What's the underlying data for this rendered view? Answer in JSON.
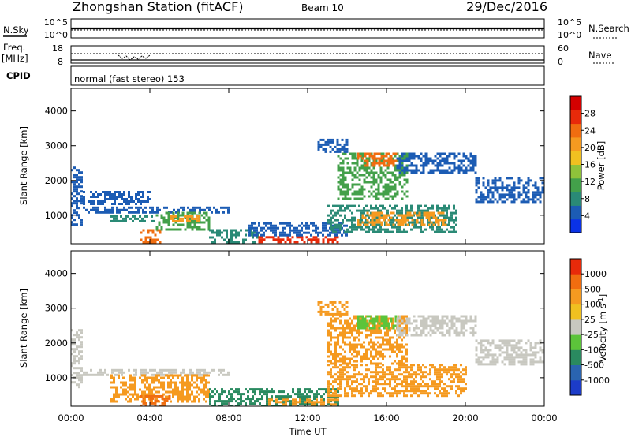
{
  "header": {
    "station": "Zhongshan Station (fitACF)",
    "beam": "Beam 10",
    "date": "29/Dec/2016"
  },
  "status_panel": {
    "nsky_label": "N.Sky",
    "nsky_ticks": [
      "10^5",
      "10^0"
    ],
    "nsearch_label": "N.Search",
    "nsearch_ticks": [
      "10^5",
      "10^0"
    ],
    "freq_label": "Freq.",
    "freq_unit": "[MHz]",
    "freq_ticks": [
      "18",
      "8"
    ],
    "nave_label": "Nave",
    "nave_ticks": [
      "60",
      "0"
    ],
    "cpid_label": "CPID",
    "cpid_text": "normal (fast stereo) 153"
  },
  "chart_data": [
    {
      "type": "heatmap",
      "name": "power",
      "ylabel": "Slant Range [km]",
      "ylim": [
        180,
        4650
      ],
      "yticks": [
        1000,
        2000,
        3000,
        4000
      ],
      "xlim": [
        0,
        24
      ],
      "colorbar": {
        "label": "Power [dB]",
        "ticks": [
          "4",
          "8",
          "12",
          "16",
          "20",
          "24",
          "28"
        ],
        "colors": [
          "#0a32e6",
          "#1c5cb4",
          "#2a8a76",
          "#43a04a",
          "#8fc23a",
          "#f0c020",
          "#f59a20",
          "#f06d10",
          "#e82a0a",
          "#d40000"
        ]
      },
      "regions": [
        {
          "t0": 0.0,
          "t1": 0.6,
          "r0": 700,
          "r1": 2400,
          "c": "#1c5cb4"
        },
        {
          "t0": 0.6,
          "t1": 8.0,
          "r0": 1100,
          "r1": 1250,
          "c": "#1c5cb4"
        },
        {
          "t0": 0.6,
          "t1": 4.0,
          "r0": 1300,
          "r1": 1700,
          "c": "#1c5cb4"
        },
        {
          "t0": 2.0,
          "t1": 4.2,
          "r0": 800,
          "r1": 1000,
          "c": "#2a8a76"
        },
        {
          "t0": 3.5,
          "t1": 4.5,
          "r0": 250,
          "r1": 600,
          "c": "#f06d10"
        },
        {
          "t0": 4.3,
          "t1": 7.0,
          "r0": 600,
          "r1": 1100,
          "c": "#43a04a"
        },
        {
          "t0": 5.0,
          "t1": 6.5,
          "r0": 800,
          "r1": 1000,
          "c": "#f59a20"
        },
        {
          "t0": 7.0,
          "t1": 9.5,
          "r0": 200,
          "r1": 600,
          "c": "#2a8a76"
        },
        {
          "t0": 9.5,
          "t1": 13.5,
          "r0": 200,
          "r1": 400,
          "c": "#e82a0a"
        },
        {
          "t0": 9.0,
          "t1": 14.0,
          "r0": 400,
          "r1": 800,
          "c": "#1c5cb4"
        },
        {
          "t0": 13.0,
          "t1": 19.5,
          "r0": 500,
          "r1": 1300,
          "c": "#2a8a76"
        },
        {
          "t0": 14.5,
          "t1": 19.0,
          "r0": 700,
          "r1": 1100,
          "c": "#f59a20"
        },
        {
          "t0": 13.5,
          "t1": 17.0,
          "r0": 1500,
          "r1": 2800,
          "c": "#43a04a"
        },
        {
          "t0": 14.5,
          "t1": 16.5,
          "r0": 2400,
          "r1": 2800,
          "c": "#f06d10"
        },
        {
          "t0": 16.5,
          "t1": 20.5,
          "r0": 2200,
          "r1": 2800,
          "c": "#1c5cb4"
        },
        {
          "t0": 20.5,
          "t1": 24.0,
          "r0": 1400,
          "r1": 2100,
          "c": "#1c5cb4"
        },
        {
          "t0": 12.5,
          "t1": 14.0,
          "r0": 2800,
          "r1": 3200,
          "c": "#1c5cb4"
        }
      ]
    },
    {
      "type": "heatmap",
      "name": "velocity",
      "ylabel": "Slant Range [km]",
      "xlabel": "Time UT",
      "ylim": [
        180,
        4650
      ],
      "yticks": [
        1000,
        2000,
        3000,
        4000
      ],
      "xlim": [
        0,
        24
      ],
      "xticks": [
        "00:00",
        "04:00",
        "08:00",
        "12:00",
        "16:00",
        "20:00",
        "00:00"
      ],
      "colorbar": {
        "label": "Velocity [m s",
        "label_sup": "-1",
        "label_end": "]",
        "ticks": [
          "1000",
          "500",
          "100",
          "25",
          "-25",
          "-100",
          "-500",
          "-1000"
        ],
        "colors": [
          "#1c3cc8",
          "#2a64b0",
          "#2a8a60",
          "#5cc43a",
          "#c8c8c0",
          "#f0c020",
          "#f59a20",
          "#f06d10",
          "#e82a0a"
        ]
      },
      "regions": [
        {
          "t0": 0.0,
          "t1": 0.6,
          "r0": 700,
          "r1": 2400,
          "c": "#c8c8c0"
        },
        {
          "t0": 0.6,
          "t1": 8.0,
          "r0": 1100,
          "r1": 1250,
          "c": "#c8c8c0"
        },
        {
          "t0": 2.0,
          "t1": 7.0,
          "r0": 300,
          "r1": 1100,
          "c": "#f59a20"
        },
        {
          "t0": 3.5,
          "t1": 5.0,
          "r0": 200,
          "r1": 500,
          "c": "#f06d10"
        },
        {
          "t0": 7.0,
          "t1": 13.5,
          "r0": 200,
          "r1": 700,
          "c": "#2a8a60"
        },
        {
          "t0": 10.0,
          "t1": 13.5,
          "r0": 200,
          "r1": 400,
          "c": "#f59a20"
        },
        {
          "t0": 13.0,
          "t1": 20.0,
          "r0": 500,
          "r1": 1400,
          "c": "#f59a20"
        },
        {
          "t0": 13.0,
          "t1": 17.0,
          "r0": 1400,
          "r1": 2800,
          "c": "#f59a20"
        },
        {
          "t0": 14.5,
          "t1": 16.5,
          "r0": 2400,
          "r1": 2800,
          "c": "#5cc43a"
        },
        {
          "t0": 16.5,
          "t1": 20.5,
          "r0": 2200,
          "r1": 2800,
          "c": "#c8c8c0"
        },
        {
          "t0": 20.5,
          "t1": 24.0,
          "r0": 1400,
          "r1": 2100,
          "c": "#c8c8c0"
        },
        {
          "t0": 12.5,
          "t1": 14.0,
          "r0": 2800,
          "r1": 3200,
          "c": "#f59a20"
        }
      ]
    }
  ]
}
